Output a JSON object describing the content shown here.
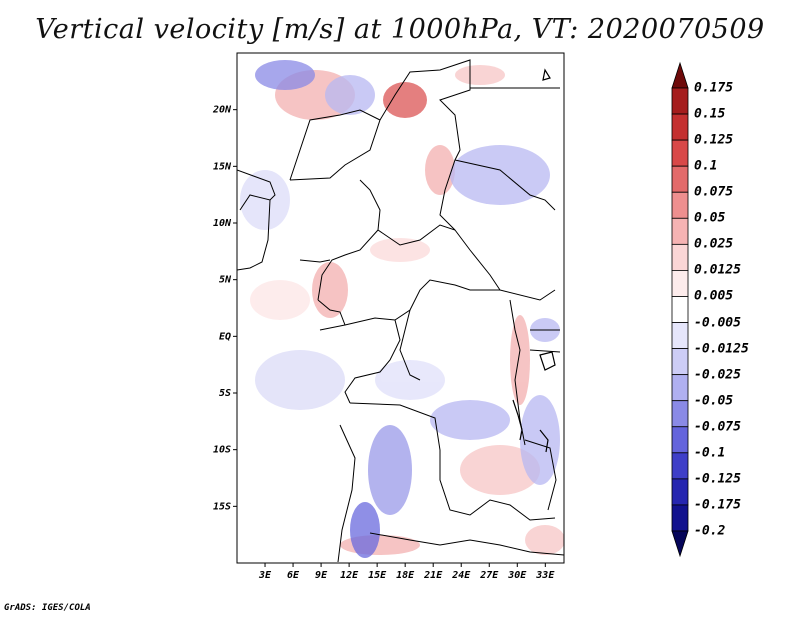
{
  "title": "Vertical velocity [m/s] at 1000hPa, VT: 2020070509",
  "footer": "GrADS: IGES/COLA",
  "map": {
    "lat_labels": [
      "20N",
      "15N",
      "10N",
      "5N",
      "EQ",
      "5S",
      "10S",
      "15S"
    ],
    "lon_labels": [
      "3E",
      "6E",
      "9E",
      "12E",
      "15E",
      "18E",
      "21E",
      "24E",
      "27E",
      "30E",
      "33E"
    ],
    "lat_range": [
      -20,
      25
    ],
    "lon_range": [
      0,
      35
    ]
  },
  "colorbar": {
    "levels": [
      "0.175",
      "0.15",
      "0.125",
      "0.1",
      "0.075",
      "0.05",
      "0.025",
      "0.0125",
      "0.005",
      "-0.005",
      "-0.0125",
      "-0.025",
      "-0.05",
      "-0.075",
      "-0.1",
      "-0.125",
      "-0.175",
      "-0.2"
    ],
    "colors": [
      "#6e0a0a",
      "#a51d1d",
      "#c43030",
      "#d84848",
      "#e36a6a",
      "#ee8f8f",
      "#f6b3b3",
      "#fbd6d6",
      "#fdecec",
      "#ffffff",
      "#e6e6fb",
      "#cdcdf6",
      "#b0b0f0",
      "#8a8ae6",
      "#6464dc",
      "#3f3fc8",
      "#2626b0",
      "#12128e",
      "#06065a"
    ]
  }
}
